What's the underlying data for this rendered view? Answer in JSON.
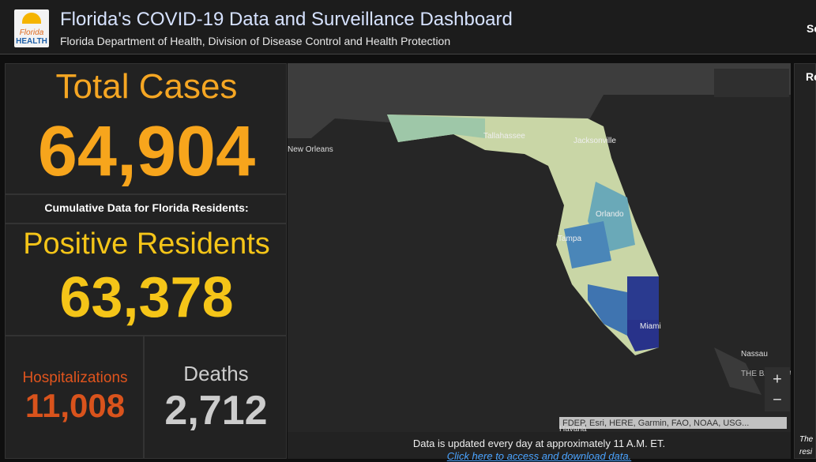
{
  "header": {
    "logo_text": [
      "Florida",
      "HEALTH"
    ],
    "title": "Florida's COVID-19 Data and Surveillance Dashboard",
    "subtitle": "Florida Department of Health, Division of Disease Control and Health Protection",
    "right_cut": "Se"
  },
  "summary": {
    "total_cases": {
      "label": "Total Cases",
      "value": "64,904"
    },
    "note": "Cumulative Data for Florida Residents:",
    "positive_residents": {
      "label": "Positive Residents",
      "value": "63,378"
    },
    "hospitalizations": {
      "label": "Hospitalizations",
      "value": "11,008"
    },
    "deaths": {
      "label": "Deaths",
      "value": "2,712"
    }
  },
  "map": {
    "cities": [
      "New Orleans",
      "Tallahassee",
      "Jacksonville",
      "Orlando",
      "Tampa",
      "Miami",
      "Nassau",
      "THE BAHAMAS",
      "Havana"
    ],
    "zoom": [
      "+",
      "−"
    ],
    "attribution": "FDEP, Esri, HERE, Garmin, FAO, NOAA, USG...",
    "footer": "Data is updated every day at approximately 11 A.M. ET.",
    "link": "Click here to access and download data."
  },
  "right_panel": {
    "heading_cut": "Re",
    "text_cut": [
      "The",
      "resi"
    ]
  }
}
